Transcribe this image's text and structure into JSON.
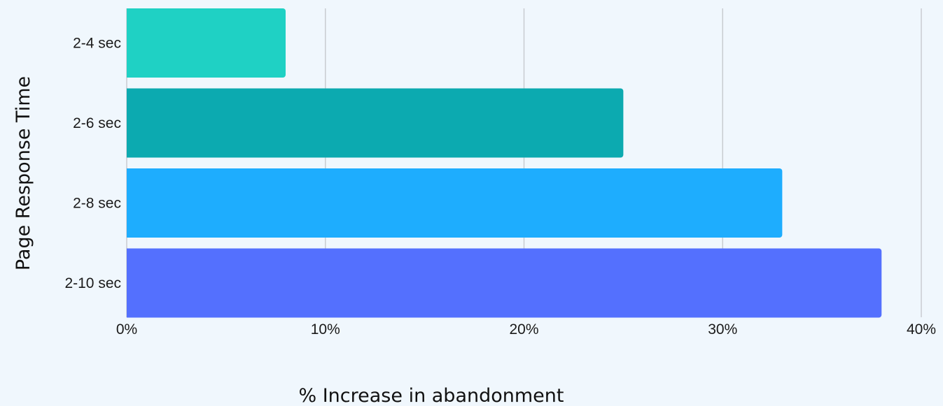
{
  "chart_data": {
    "type": "bar",
    "orientation": "horizontal",
    "categories": [
      "2-4 sec",
      "2-6 sec",
      "2-8 sec",
      "2-10 sec"
    ],
    "values": [
      8,
      25,
      33,
      38
    ],
    "bar_colors": [
      "#1fd1c4",
      "#0caab0",
      "#1eadfe",
      "#5470fe"
    ],
    "xlabel": "% Increase in abandonment",
    "ylabel": "Page Response Time",
    "xlim": [
      0,
      40
    ],
    "xticks": [
      0,
      10,
      20,
      30,
      40
    ],
    "xtick_labels": [
      "0%",
      "10%",
      "20%",
      "30%",
      "40%"
    ],
    "grid": "vertical",
    "legend": "none"
  },
  "colors": {
    "background": "#f0f7fd",
    "grid": "#c9ccd1"
  }
}
